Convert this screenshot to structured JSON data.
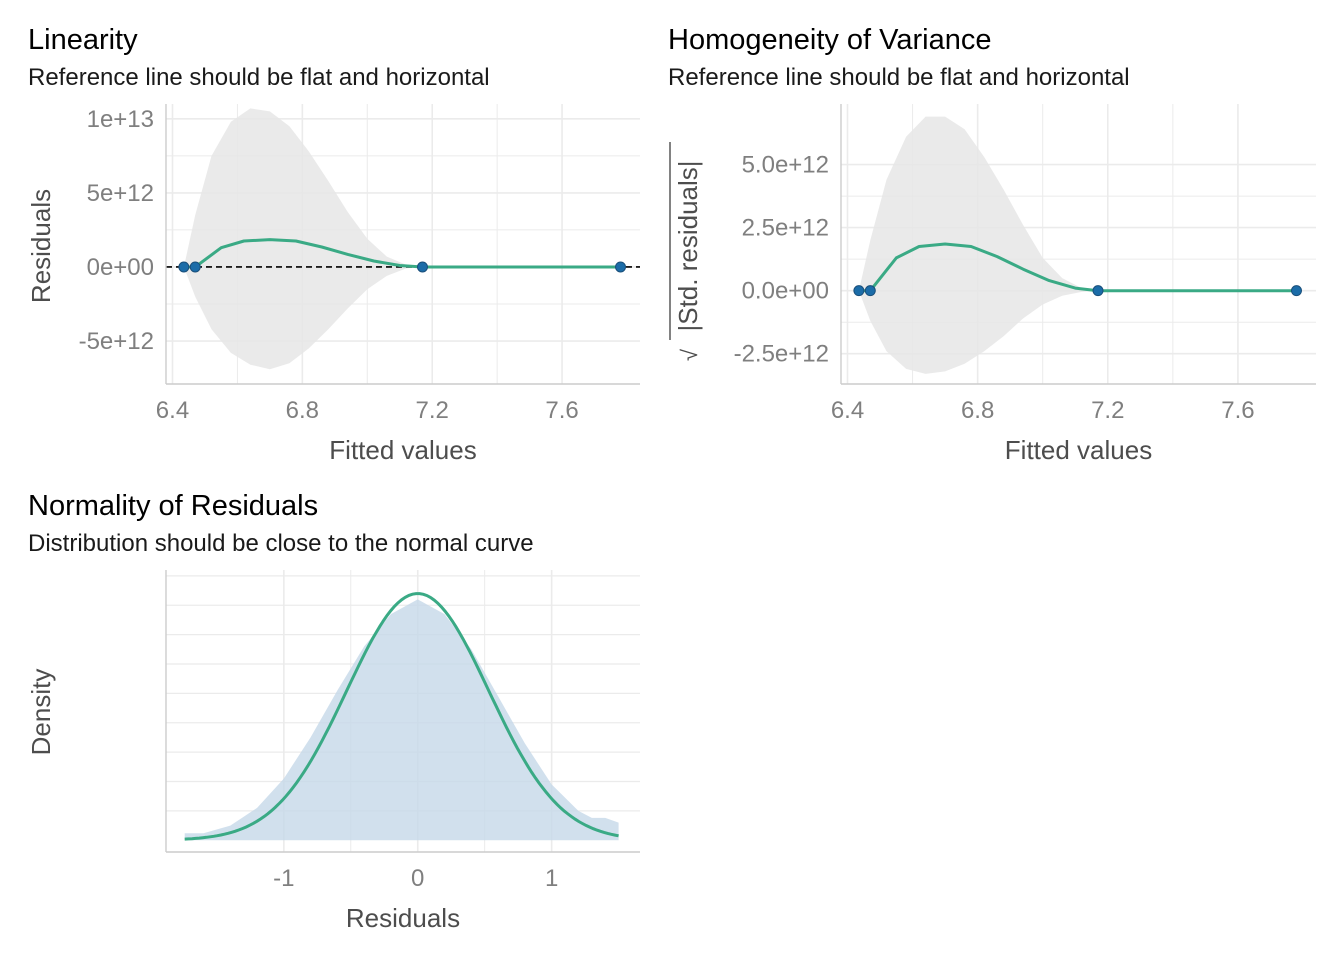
{
  "colors": {
    "line": "#3aaa85",
    "point": "#1b6ca8",
    "band": "#e6e6e6",
    "density_fill": "#c6d8e8",
    "grid": "#ebebeb",
    "axis_text": "#4d4d4d",
    "tick_text": "#7f7f7f"
  },
  "chart_data": [
    {
      "type": "scatter",
      "title": "Linearity",
      "subtitle": "Reference line should be flat and horizontal",
      "xlabel": "Fitted values",
      "ylabel": "Residuals",
      "xlim": [
        6.38,
        7.84
      ],
      "ylim": [
        -7900000000000.0,
        11000000000000.0
      ],
      "xticks": [
        6.4,
        6.8,
        7.2,
        7.6
      ],
      "xtick_labels": [
        "6.4",
        "6.8",
        "7.2",
        "7.6"
      ],
      "yticks": [
        -5000000000000.0,
        0,
        5000000000000.0,
        10000000000000.0
      ],
      "ytick_labels": [
        "-5e+12",
        "0e+00",
        "5e+12",
        "1e+13"
      ],
      "reference_line": 0,
      "points": {
        "x": [
          6.435,
          6.47,
          7.17,
          7.78
        ],
        "y": [
          0,
          0,
          0,
          0
        ]
      },
      "smooth": {
        "x": [
          6.435,
          6.47,
          6.55,
          6.62,
          6.7,
          6.78,
          6.86,
          6.94,
          7.02,
          7.1,
          7.17,
          7.4,
          7.6,
          7.78
        ],
        "y": [
          0,
          0,
          1300000000000.0,
          1750000000000.0,
          1850000000000.0,
          1750000000000.0,
          1350000000000.0,
          850000000000.0,
          400000000000.0,
          100000000000.0,
          0,
          0,
          0,
          0
        ]
      },
      "band": {
        "x": [
          6.435,
          6.47,
          6.52,
          6.58,
          6.64,
          6.7,
          6.76,
          6.82,
          6.88,
          6.94,
          7.0,
          7.06,
          7.12,
          7.17,
          7.4,
          7.6,
          7.78
        ],
        "upper": [
          0,
          3500000000000.0,
          7500000000000.0,
          9800000000000.0,
          10700000000000.0,
          10500000000000.0,
          9500000000000.0,
          7800000000000.0,
          5800000000000.0,
          3700000000000.0,
          1900000000000.0,
          700000000000.0,
          150000000000.0,
          0,
          0,
          0,
          0
        ],
        "lower": [
          0,
          -2000000000000.0,
          -4200000000000.0,
          -5800000000000.0,
          -6600000000000.0,
          -6900000000000.0,
          -6500000000000.0,
          -5500000000000.0,
          -4200000000000.0,
          -2800000000000.0,
          -1500000000000.0,
          -600000000000.0,
          -100000000000.0,
          0,
          0,
          0,
          0
        ]
      }
    },
    {
      "type": "scatter",
      "title": "Homogeneity of Variance",
      "subtitle": "Reference line should be flat and horizontal",
      "xlabel": "Fitted values",
      "ylabel": "|Std. residuals|",
      "ylabel_prefix": "√",
      "xlim": [
        6.38,
        7.84
      ],
      "ylim": [
        -3700000000000.0,
        7400000000000.0
      ],
      "xticks": [
        6.4,
        6.8,
        7.2,
        7.6
      ],
      "xtick_labels": [
        "6.4",
        "6.8",
        "7.2",
        "7.6"
      ],
      "yticks": [
        -2500000000000.0,
        0,
        2500000000000.0,
        5000000000000.0
      ],
      "ytick_labels": [
        "-2.5e+12",
        "0.0e+00",
        "2.5e+12",
        "5.0e+12"
      ],
      "points": {
        "x": [
          6.435,
          6.47,
          7.17,
          7.78
        ],
        "y": [
          0,
          0,
          0,
          0
        ]
      },
      "smooth": {
        "x": [
          6.435,
          6.47,
          6.55,
          6.62,
          6.7,
          6.78,
          6.86,
          6.94,
          7.02,
          7.1,
          7.17,
          7.4,
          7.6,
          7.78
        ],
        "y": [
          0,
          0,
          1300000000000.0,
          1750000000000.0,
          1850000000000.0,
          1750000000000.0,
          1350000000000.0,
          850000000000.0,
          400000000000.0,
          100000000000.0,
          0,
          0,
          0,
          0
        ]
      },
      "band": {
        "x": [
          6.435,
          6.47,
          6.52,
          6.58,
          6.64,
          6.7,
          6.76,
          6.82,
          6.88,
          6.94,
          7.0,
          7.06,
          7.12,
          7.17,
          7.4,
          7.6,
          7.78
        ],
        "upper": [
          0,
          2000000000000.0,
          4400000000000.0,
          6100000000000.0,
          6900000000000.0,
          6900000000000.0,
          6400000000000.0,
          5300000000000.0,
          4000000000000.0,
          2600000000000.0,
          1300000000000.0,
          500000000000.0,
          100000000000.0,
          0,
          0,
          0,
          0
        ],
        "lower": [
          0,
          -1200000000000.0,
          -2400000000000.0,
          -3100000000000.0,
          -3300000000000.0,
          -3200000000000.0,
          -2900000000000.0,
          -2400000000000.0,
          -1800000000000.0,
          -1100000000000.0,
          -550000000000.0,
          -200000000000.0,
          -50000000000.0,
          0,
          0,
          0,
          0
        ]
      }
    },
    {
      "type": "area",
      "title": "Normality of Residuals",
      "subtitle": "Distribution should be close to the normal curve",
      "xlabel": "Residuals",
      "ylabel": "Density",
      "xlim": [
        -1.88,
        1.66
      ],
      "ylim": [
        -0.02,
        0.46
      ],
      "xticks": [
        -1,
        0,
        1
      ],
      "xtick_labels": [
        "-1",
        "0",
        "1"
      ],
      "y_gridlines": [
        0.05,
        0.1,
        0.15,
        0.2,
        0.25,
        0.3,
        0.35,
        0.4,
        0.45
      ],
      "density": {
        "x": [
          -1.74,
          -1.6,
          -1.4,
          -1.2,
          -1.0,
          -0.8,
          -0.6,
          -0.4,
          -0.2,
          0.0,
          0.2,
          0.4,
          0.6,
          0.8,
          1.0,
          1.2,
          1.3,
          1.4,
          1.5
        ],
        "y": [
          0.012,
          0.012,
          0.025,
          0.055,
          0.105,
          0.175,
          0.255,
          0.33,
          0.385,
          0.41,
          0.385,
          0.325,
          0.245,
          0.165,
          0.095,
          0.05,
          0.038,
          0.038,
          0.03
        ]
      },
      "normal_curve": {
        "mean": 0,
        "sd": 0.53,
        "xmin": -1.74,
        "xmax": 1.5
      }
    }
  ]
}
